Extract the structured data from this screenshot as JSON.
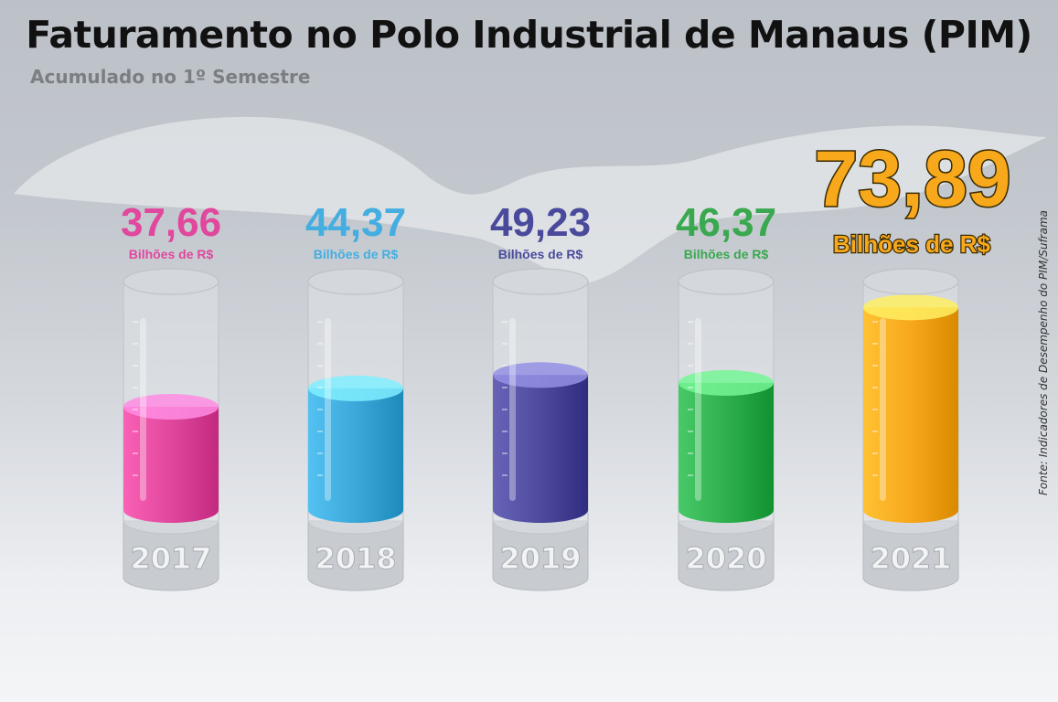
{
  "title": "Faturamento no Polo Industrial de Manaus (PIM)",
  "subtitle": "Acumulado no 1º Semestre",
  "source": "Fonte: Indicadores de Desempenho do PIM/Suframa",
  "chart_data": {
    "type": "bar",
    "title": "Faturamento no Polo Industrial de Manaus (PIM)",
    "subtitle": "Acumulado no 1º Semestre",
    "categories": [
      "2017",
      "2018",
      "2019",
      "2020",
      "2021"
    ],
    "values": [
      37.66,
      44.37,
      49.23,
      46.37,
      73.89
    ],
    "value_labels": [
      "37,66",
      "44,37",
      "49,23",
      "46,37",
      "73,89"
    ],
    "unit_label": "Bilhões de R$",
    "ylim": [
      0,
      80
    ],
    "colors": [
      "#e0479d",
      "#3aa8d8",
      "#4e4a9e",
      "#2fb04f",
      "#f7a81b"
    ],
    "label_colors": [
      "#e0479d",
      "#44aee0",
      "#4a4a9c",
      "#3aa84f",
      "#f7a81b"
    ],
    "grid": false,
    "legend": "none"
  }
}
